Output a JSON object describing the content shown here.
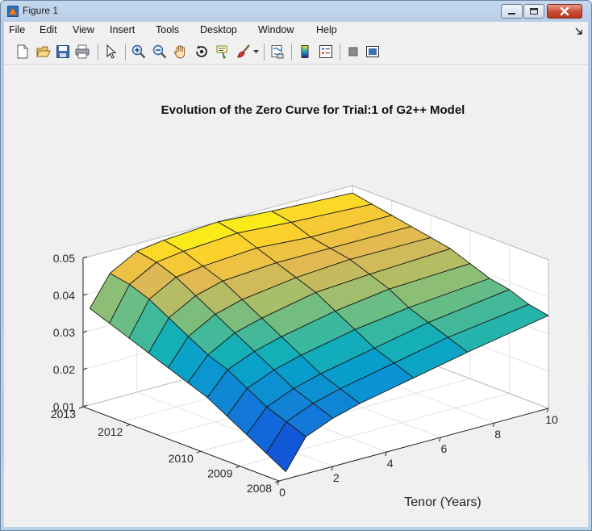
{
  "window": {
    "title": "Figure 1",
    "buttons": [
      "minimize",
      "maximize",
      "close"
    ],
    "close_color": "#c74b34"
  },
  "menu": {
    "items": [
      "File",
      "Edit",
      "View",
      "Insert",
      "Tools",
      "Desktop",
      "Window",
      "Help"
    ],
    "overflow_arrow": "dock-arrow-icon"
  },
  "toolbar": {
    "icons": [
      "new-figure-icon",
      "open-file-icon",
      "save-icon",
      "print-icon",
      "select-arrow-icon",
      "zoom-in-icon",
      "zoom-out-icon",
      "pan-hand-icon",
      "rotate-3d-icon",
      "data-cursor-icon",
      "brush-icon",
      "link-plot-icon",
      "colorbar-icon",
      "legend-icon",
      "hide-plot-tools-icon",
      "show-plot-tools-icon"
    ]
  },
  "chart_data": {
    "type": "surface",
    "title": "Evolution of the Zero Curve for Trial:1 of G2++ Model",
    "xlabel": "Tenor (Years)",
    "ylabel": "",
    "zlabel": "",
    "x_ticks": [
      "0",
      "2",
      "4",
      "6",
      "8",
      "10"
    ],
    "y_ticks": [
      "2008",
      "2009",
      "2010",
      "2012",
      "2013"
    ],
    "z_ticks": [
      "0.01",
      "0.02",
      "0.03",
      "0.04",
      "0.05"
    ],
    "xlim": [
      0,
      10
    ],
    "zlim": [
      0.01,
      0.05
    ],
    "grid": true,
    "colormap": "parula",
    "tenors": [
      0.25,
      1,
      2,
      3,
      5,
      7,
      10
    ],
    "dates": [
      2008.0,
      2008.5,
      2009.0,
      2009.5,
      2010.0,
      2010.5,
      2011.0,
      2011.5,
      2012.0,
      2012.5,
      2013.0
    ],
    "z_values": [
      [
        0.012,
        0.02,
        0.023,
        0.025,
        0.028,
        0.031,
        0.035
      ],
      [
        0.015,
        0.022,
        0.025,
        0.027,
        0.03,
        0.033,
        0.036
      ],
      [
        0.018,
        0.024,
        0.027,
        0.029,
        0.032,
        0.035,
        0.038
      ],
      [
        0.021,
        0.027,
        0.03,
        0.032,
        0.035,
        0.037,
        0.039
      ],
      [
        0.024,
        0.03,
        0.033,
        0.035,
        0.038,
        0.04,
        0.041
      ],
      [
        0.026,
        0.032,
        0.036,
        0.038,
        0.041,
        0.042,
        0.043
      ],
      [
        0.028,
        0.035,
        0.039,
        0.041,
        0.043,
        0.044,
        0.044
      ],
      [
        0.03,
        0.038,
        0.042,
        0.044,
        0.045,
        0.045,
        0.045
      ],
      [
        0.032,
        0.041,
        0.045,
        0.046,
        0.047,
        0.046,
        0.046
      ],
      [
        0.034,
        0.043,
        0.047,
        0.048,
        0.049,
        0.048,
        0.047
      ],
      [
        0.036,
        0.044,
        0.048,
        0.049,
        0.05,
        0.049,
        0.048
      ]
    ]
  }
}
